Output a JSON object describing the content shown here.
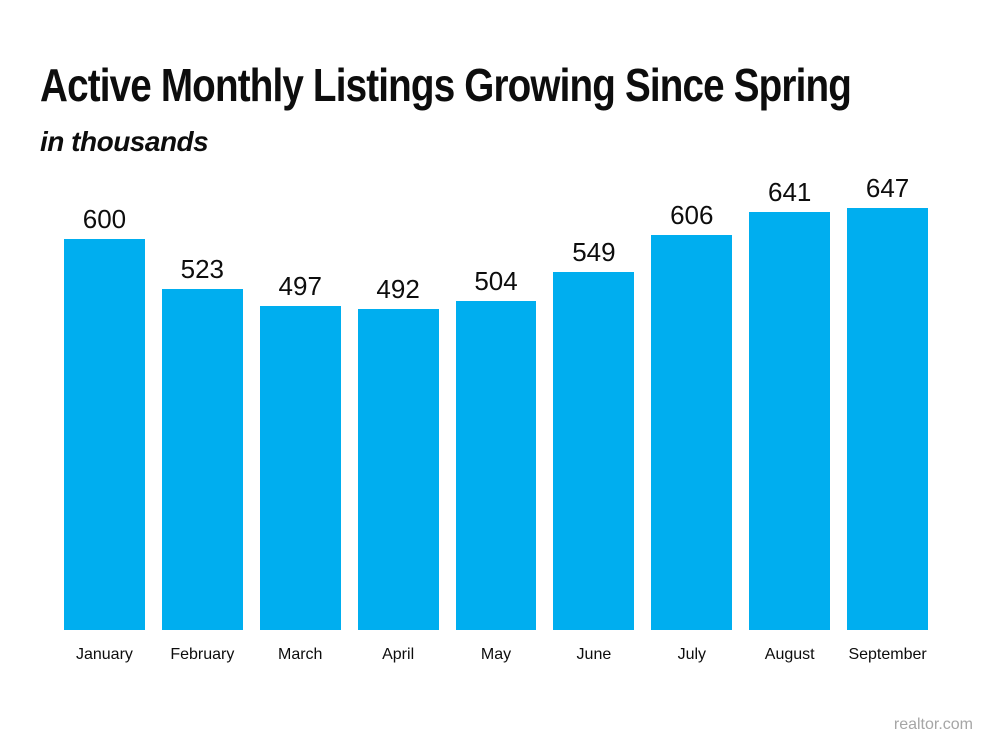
{
  "header": {
    "title": "Active Monthly Listings Growing Since Spring",
    "subtitle": "in thousands"
  },
  "source": {
    "label": "realtor.com",
    "color": "#a6a6a6"
  },
  "chart_data": {
    "type": "bar",
    "title": "Active Monthly Listings Growing Since Spring",
    "subtitle": "in thousands",
    "units": "thousands",
    "categories": [
      "January",
      "February",
      "March",
      "April",
      "May",
      "June",
      "July",
      "August",
      "September"
    ],
    "values": [
      600,
      523,
      497,
      492,
      504,
      549,
      606,
      641,
      647
    ],
    "data_labels": true,
    "bar_color": "#00AEEF",
    "label_color": "#0d0d0d",
    "xlabel": "",
    "ylabel": "",
    "ylim": [
      0,
      680
    ],
    "grid": false,
    "legend": false,
    "axis_lines": false
  }
}
